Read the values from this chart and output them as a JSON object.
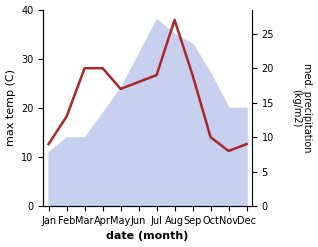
{
  "months": [
    "Jan",
    "Feb",
    "Mar",
    "Apr",
    "May",
    "Jun",
    "Jul",
    "Aug",
    "Sep",
    "Oct",
    "Nov",
    "Dec"
  ],
  "month_indices": [
    0,
    1,
    2,
    3,
    4,
    5,
    6,
    7,
    8,
    9,
    10,
    11
  ],
  "max_temp": [
    11,
    14,
    14,
    19,
    24,
    31,
    38,
    35,
    33,
    27,
    20,
    20
  ],
  "precipitation": [
    9,
    13,
    20,
    20,
    17,
    18,
    19,
    27,
    19,
    10,
    8,
    9
  ],
  "temp_fill_color": "#c8d0f0",
  "precip_color": "#aa2828",
  "temp_ylim": [
    0,
    40
  ],
  "precip_ylim": [
    0,
    28.5
  ],
  "precip_yticks": [
    0,
    5,
    10,
    15,
    20,
    25
  ],
  "temp_yticks": [
    0,
    10,
    20,
    30,
    40
  ],
  "xlabel": "date (month)",
  "ylabel_left": "max temp (C)",
  "ylabel_right": "med. precipitation\n(kg/m2)",
  "bg_color": "#ffffff"
}
